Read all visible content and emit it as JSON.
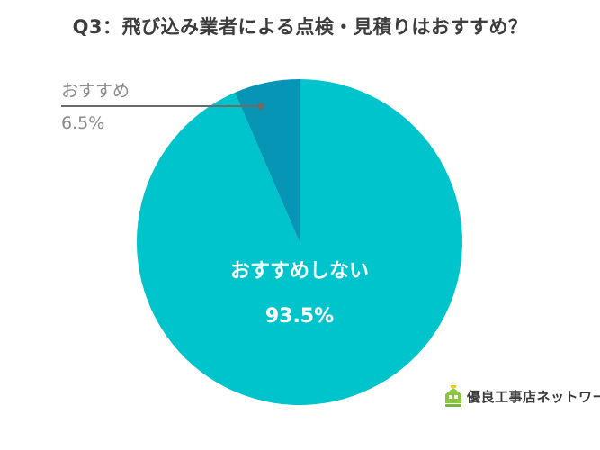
{
  "chart_data": {
    "type": "pie",
    "title": "Q3：飛び込み業者による点検・見積りはおすすめ？",
    "slices": [
      {
        "label": "おすすめしない",
        "value": 93.5,
        "value_label": "93.5%",
        "color": "#00c4cc",
        "label_position": "inside"
      },
      {
        "label": "おすすめ",
        "value": 6.5,
        "value_label": "6.5%",
        "color": "#0695b5",
        "label_position": "outside-callout"
      }
    ],
    "start_angle": "12 o'clock",
    "direction": "counterclockwise for small slice",
    "legend": "none"
  },
  "colors": {
    "title": "#3c3c3c",
    "callout_text": "#8a8a8a",
    "callout_line": "#6b6b6b",
    "inner_text": "#ffffff",
    "logo_green": "#8cc63e",
    "logo_yellow": "#f5c518"
  },
  "logo": {
    "text": "優良工事店ネットワーク",
    "icon": "house-icon"
  }
}
